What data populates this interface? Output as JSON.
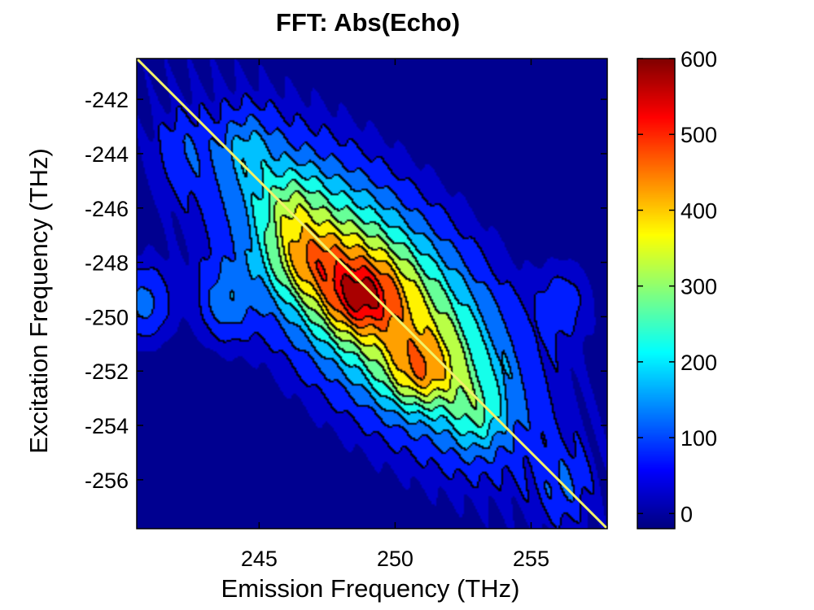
{
  "chart_data": {
    "type": "heatmap",
    "title": "FFT: Abs(Echo)",
    "xlabel": "Emission Frequency (THz)",
    "ylabel": "Excitation Frequency (THz)",
    "xlim": [
      240.5,
      257.8
    ],
    "ylim": [
      -257.8,
      -240.5
    ],
    "x_ticks": [
      245,
      250,
      255
    ],
    "x_tick_labels": [
      "245",
      "250",
      "255"
    ],
    "y_ticks": [
      -256,
      -254,
      -252,
      -250,
      -248,
      -246,
      -244,
      -242
    ],
    "y_tick_labels": [
      "-256",
      "-254",
      "-252",
      "-250",
      "-248",
      "-246",
      "-244",
      "-242"
    ],
    "colorbar": {
      "colormap": "jet",
      "range": [
        -20,
        600
      ],
      "ticks": [
        0,
        100,
        200,
        300,
        400,
        500,
        600
      ],
      "tick_labels": [
        "0",
        "100",
        "200",
        "300",
        "400",
        "500",
        "600"
      ]
    },
    "contour_levels": [
      50,
      100,
      150,
      200,
      250,
      300,
      350,
      400,
      450,
      500,
      550
    ],
    "background_value": -10,
    "peaks": [
      {
        "x": 248.7,
        "y": -249.3,
        "value": 560
      },
      {
        "x": 251.0,
        "y": -252.0,
        "value": 480
      },
      {
        "x": 247.0,
        "y": -248.0,
        "value": 440
      },
      {
        "x": 246.2,
        "y": -246.2,
        "value": 330
      },
      {
        "x": 244.6,
        "y": -244.0,
        "value": 230
      },
      {
        "x": 253.0,
        "y": -253.5,
        "value": 300
      },
      {
        "x": 243.8,
        "y": -249.5,
        "value": 230
      },
      {
        "x": 240.8,
        "y": -249.5,
        "value": 230
      },
      {
        "x": 242.2,
        "y": -244.0,
        "value": 150
      },
      {
        "x": 256.2,
        "y": -249.5,
        "value": 150
      },
      {
        "x": 256.2,
        "y": -256.3,
        "value": 180
      }
    ],
    "diagonal_line": {
      "x": [
        240.5,
        257.8
      ],
      "y": [
        -240.5,
        -257.8
      ],
      "color": "#f2f26a"
    },
    "grid": false
  }
}
